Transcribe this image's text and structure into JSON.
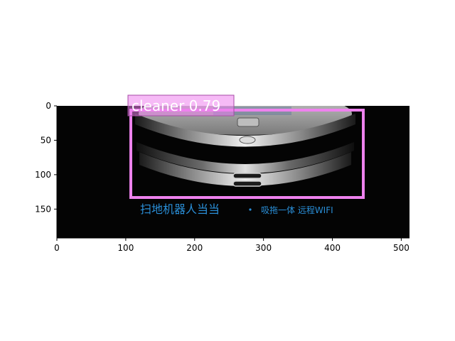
{
  "figure": {
    "axes": {
      "x_ticks": [
        "0",
        "100",
        "200",
        "300",
        "400",
        "500"
      ],
      "y_ticks": [
        "0",
        "50",
        "100",
        "150"
      ]
    },
    "image": {
      "subject": "robot vacuum cleaner photo",
      "background_color": "#040404",
      "caption_main": "扫地机器人当当",
      "caption_sub": "吸拖一体 远程WIFI",
      "caption_color": "#2a8fd8"
    },
    "detection": {
      "label": "cleaner 0.79",
      "box_color": "#ee82ee"
    }
  }
}
